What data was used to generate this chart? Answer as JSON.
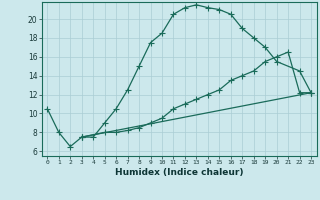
{
  "xlabel": "Humidex (Indice chaleur)",
  "bg_color": "#cce8ec",
  "line_color": "#1a6b5a",
  "grid_color": "#aacdd4",
  "xlim": [
    -0.5,
    23.5
  ],
  "ylim": [
    5.5,
    21.8
  ],
  "xticks": [
    0,
    1,
    2,
    3,
    4,
    5,
    6,
    7,
    8,
    9,
    10,
    11,
    12,
    13,
    14,
    15,
    16,
    17,
    18,
    19,
    20,
    21,
    22,
    23
  ],
  "yticks": [
    6,
    8,
    10,
    12,
    14,
    16,
    18,
    20
  ],
  "curve1_x": [
    0,
    1,
    2,
    3,
    4,
    5,
    6,
    7,
    8,
    9,
    10,
    11,
    12,
    13,
    14,
    15,
    16,
    17,
    18,
    19,
    20,
    22,
    23
  ],
  "curve1_y": [
    10.5,
    8.0,
    6.5,
    7.5,
    7.5,
    9.0,
    10.5,
    12.5,
    15.0,
    17.5,
    18.5,
    20.5,
    21.2,
    21.5,
    21.2,
    21.0,
    20.5,
    19.0,
    18.0,
    17.0,
    15.5,
    14.5,
    12.2
  ],
  "curve2_x": [
    3,
    5,
    6,
    7,
    8,
    9,
    10,
    11,
    12,
    13,
    14,
    15,
    16,
    17,
    18,
    19,
    20,
    21,
    22,
    23
  ],
  "curve2_y": [
    7.5,
    8.0,
    8.0,
    8.2,
    8.5,
    9.0,
    9.5,
    10.5,
    11.0,
    11.5,
    12.0,
    12.5,
    13.5,
    14.0,
    14.5,
    15.5,
    16.0,
    16.5,
    12.2,
    12.2
  ],
  "curve3_x": [
    3,
    23
  ],
  "curve3_y": [
    7.5,
    12.2
  ]
}
